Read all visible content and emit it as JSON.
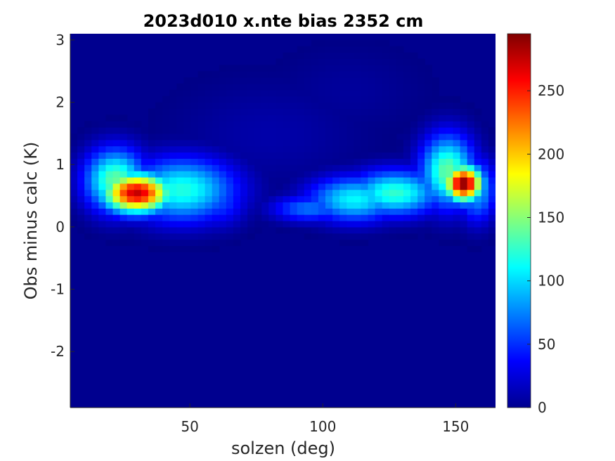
{
  "chart_data": {
    "type": "heatmap",
    "title": "2023d010 x.nte bias 2352 cm",
    "xlabel": "solzen (deg)",
    "ylabel": "Obs minus calc (K)",
    "xlim": [
      5,
      165
    ],
    "ylim": [
      -2.9,
      3.1
    ],
    "x_ticks": [
      50,
      100,
      150
    ],
    "y_ticks": [
      3,
      2,
      1,
      0,
      -1,
      -2
    ],
    "colorbar": {
      "colormap": "jet",
      "range": [
        0,
        295
      ],
      "ticks": [
        0,
        50,
        100,
        150,
        200,
        250
      ]
    },
    "hotspots": [
      {
        "x": 30,
        "y": 0.55,
        "value": 275,
        "sx": 9,
        "sy": 0.22
      },
      {
        "x": 47,
        "y": 0.6,
        "value": 120,
        "sx": 14,
        "sy": 0.35
      },
      {
        "x": 22,
        "y": 0.75,
        "value": 140,
        "sx": 8,
        "sy": 0.35
      },
      {
        "x": 60,
        "y": 0.45,
        "value": 60,
        "sx": 8,
        "sy": 0.3
      },
      {
        "x": 95,
        "y": 0.3,
        "value": 70,
        "sx": 10,
        "sy": 0.15
      },
      {
        "x": 112,
        "y": 0.45,
        "value": 110,
        "sx": 12,
        "sy": 0.25
      },
      {
        "x": 127,
        "y": 0.55,
        "value": 125,
        "sx": 12,
        "sy": 0.25
      },
      {
        "x": 153,
        "y": 0.7,
        "value": 295,
        "sx": 5,
        "sy": 0.2
      },
      {
        "x": 147,
        "y": 0.9,
        "value": 140,
        "sx": 7,
        "sy": 0.4
      },
      {
        "x": 158,
        "y": 0.6,
        "value": 90,
        "sx": 5,
        "sy": 0.35
      },
      {
        "x": 140,
        "y": 0.7,
        "value": 70,
        "sx": 6,
        "sy": 0.3
      },
      {
        "x": 80,
        "y": 1.5,
        "value": 12,
        "sx": 25,
        "sy": 0.6
      },
      {
        "x": 110,
        "y": 2.2,
        "value": 8,
        "sx": 20,
        "sy": 0.5
      }
    ]
  }
}
